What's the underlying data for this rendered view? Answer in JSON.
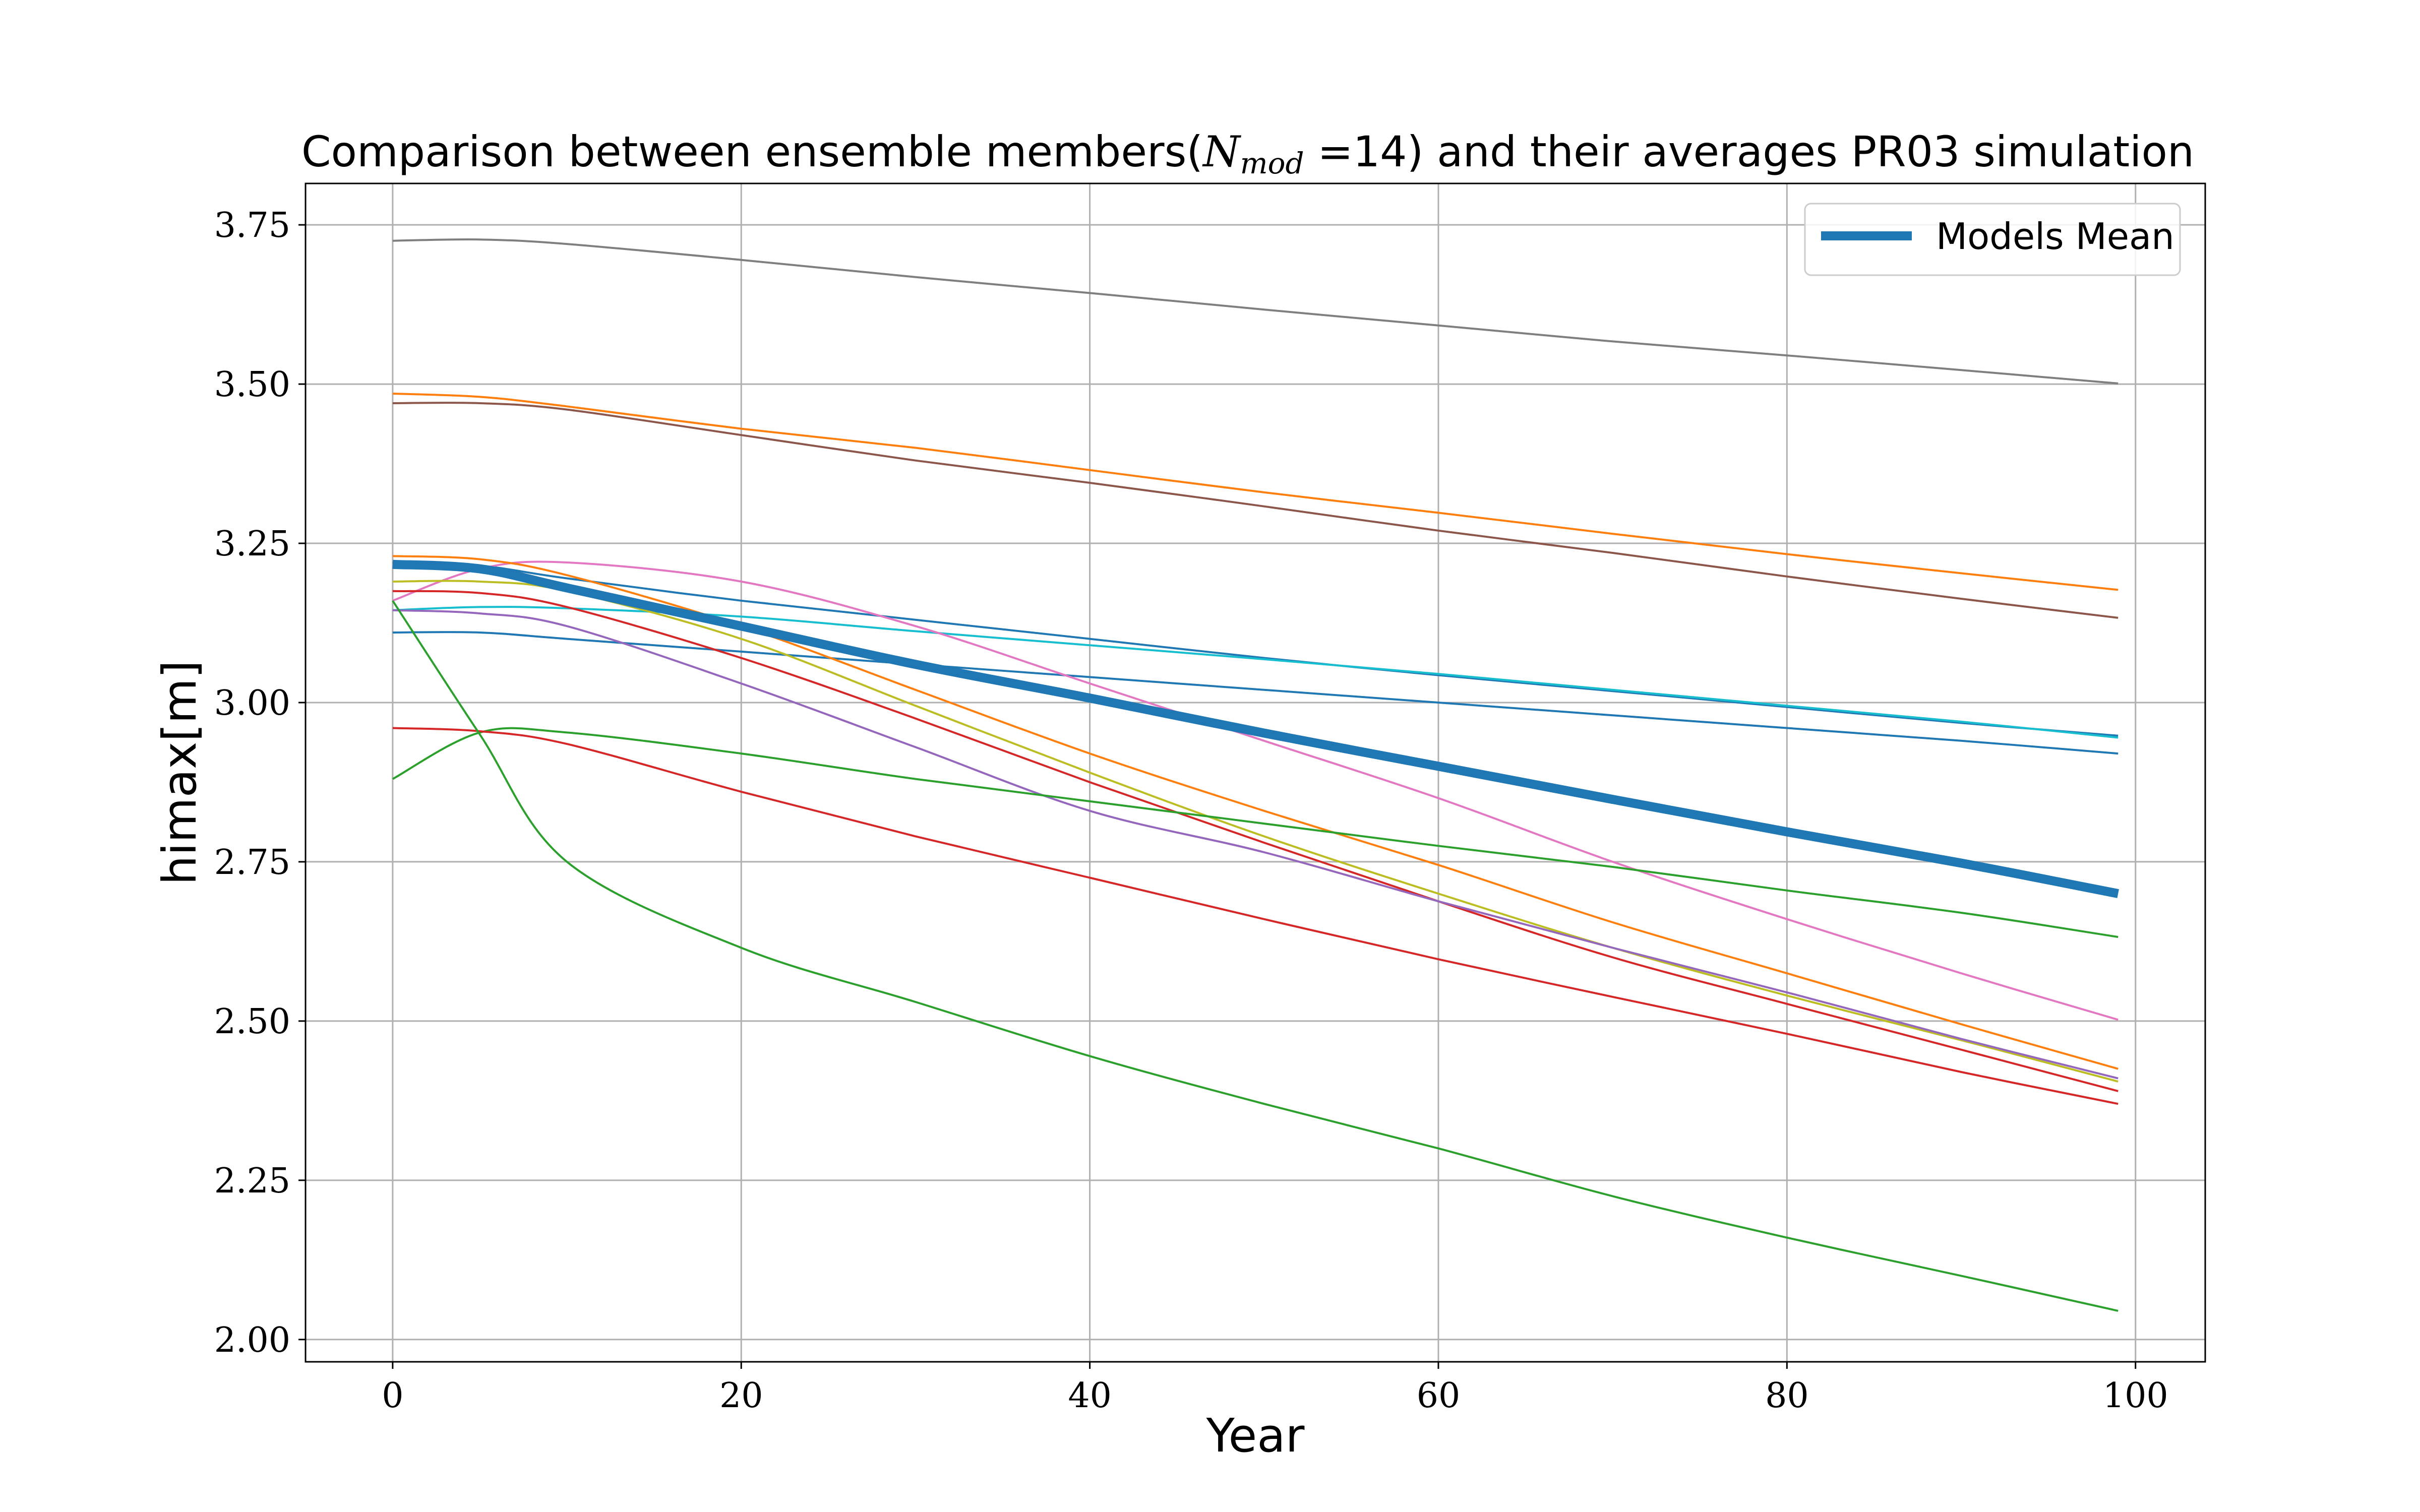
{
  "chart_data": {
    "type": "line",
    "title": {
      "prefix": "Comparison between ensemble members(",
      "math_symbol": "N",
      "math_subscript": "mod",
      "math_suffix": " =14) and their averages PR03 simulation"
    },
    "xlabel": "Year",
    "ylabel": "himax[m]",
    "xlim": [
      -5,
      104
    ],
    "ylim": [
      1.965,
      3.815
    ],
    "xticks": [
      0,
      20,
      40,
      60,
      80,
      100
    ],
    "xtick_labels": [
      "0",
      "20",
      "40",
      "60",
      "80",
      "100"
    ],
    "yticks": [
      2.0,
      2.25,
      2.5,
      2.75,
      3.0,
      3.25,
      3.5,
      3.75
    ],
    "ytick_labels": [
      "2.00",
      "2.25",
      "2.50",
      "2.75",
      "3.00",
      "3.25",
      "3.50",
      "3.75"
    ],
    "grid": true,
    "legend": {
      "placement": "top-right",
      "entries": [
        "Models Mean"
      ]
    },
    "x": [
      0,
      5,
      10,
      20,
      30,
      40,
      50,
      60,
      70,
      80,
      90,
      99
    ],
    "series": [
      {
        "color": "#7f7f7f",
        "values": [
          3.725,
          3.727,
          3.72,
          3.695,
          3.668,
          3.643,
          3.617,
          3.592,
          3.567,
          3.545,
          3.522,
          3.501
        ]
      },
      {
        "color": "#ff7f0e",
        "values": [
          3.485,
          3.48,
          3.465,
          3.43,
          3.4,
          3.365,
          3.33,
          3.298,
          3.265,
          3.233,
          3.203,
          3.177
        ]
      },
      {
        "color": "#8c564b",
        "values": [
          3.47,
          3.47,
          3.46,
          3.42,
          3.38,
          3.345,
          3.308,
          3.27,
          3.235,
          3.198,
          3.163,
          3.133
        ]
      },
      {
        "color": "#1f77b4",
        "values": [
          3.22,
          3.215,
          3.195,
          3.16,
          3.13,
          3.1,
          3.07,
          3.043,
          3.018,
          2.993,
          2.968,
          2.948
        ]
      },
      {
        "color": "#17becf",
        "values": [
          3.145,
          3.15,
          3.148,
          3.135,
          3.112,
          3.09,
          3.068,
          3.045,
          3.02,
          2.995,
          2.97,
          2.945
        ]
      },
      {
        "color": "#1f77b4",
        "values": [
          3.11,
          3.11,
          3.1,
          3.08,
          3.06,
          3.04,
          3.02,
          3.0,
          2.98,
          2.96,
          2.94,
          2.92
        ]
      },
      {
        "color": "#e377c2",
        "values": [
          3.16,
          3.21,
          3.22,
          3.19,
          3.12,
          3.03,
          2.94,
          2.85,
          2.75,
          2.66,
          2.575,
          2.502
        ]
      },
      {
        "color": "#ff7f0e",
        "values": [
          3.23,
          3.225,
          3.2,
          3.12,
          3.02,
          2.92,
          2.83,
          2.745,
          2.655,
          2.575,
          2.495,
          2.425
        ]
      },
      {
        "color": "#bcbd22",
        "values": [
          3.19,
          3.19,
          3.175,
          3.1,
          2.995,
          2.89,
          2.79,
          2.7,
          2.615,
          2.54,
          2.47,
          2.405
        ]
      },
      {
        "color": "#d62728",
        "values": [
          3.175,
          3.172,
          3.15,
          3.07,
          2.975,
          2.875,
          2.78,
          2.688,
          2.6,
          2.527,
          2.455,
          2.39
        ]
      },
      {
        "color": "#9467bd",
        "values": [
          3.145,
          3.14,
          3.12,
          3.03,
          2.93,
          2.83,
          2.765,
          2.688,
          2.615,
          2.545,
          2.472,
          2.41
        ]
      },
      {
        "color": "#2ca02c",
        "values": [
          2.88,
          2.953,
          2.953,
          2.92,
          2.88,
          2.845,
          2.81,
          2.775,
          2.742,
          2.705,
          2.67,
          2.632
        ]
      },
      {
        "color": "#d62728",
        "values": [
          2.96,
          2.955,
          2.935,
          2.86,
          2.79,
          2.725,
          2.66,
          2.597,
          2.538,
          2.48,
          2.42,
          2.37
        ]
      },
      {
        "color": "#2ca02c",
        "values": [
          3.16,
          2.95,
          2.75,
          2.615,
          2.53,
          2.445,
          2.37,
          2.3,
          2.225,
          2.16,
          2.1,
          2.045
        ]
      },
      {
        "name": "Models Mean",
        "color": "#1f77b4",
        "is_mean": true,
        "values": [
          3.217,
          3.21,
          3.18,
          3.12,
          3.06,
          3.007,
          2.952,
          2.9,
          2.848,
          2.797,
          2.748,
          2.7
        ]
      }
    ]
  }
}
